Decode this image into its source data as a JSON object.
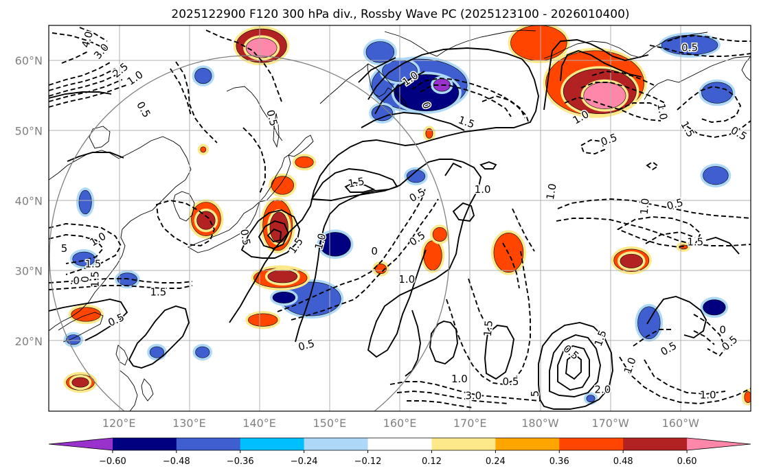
{
  "title": "2025122900 F120 300 hPa div., Rossby Wave PC (2025123100 - 2026010400)",
  "map": {
    "lon_range": [
      110,
      210
    ],
    "lat_range": [
      10,
      65
    ],
    "lat_ticks": [
      {
        "value": 20,
        "label": "20°N"
      },
      {
        "value": 30,
        "label": "30°N"
      },
      {
        "value": 40,
        "label": "40°N"
      },
      {
        "value": 50,
        "label": "50°N"
      },
      {
        "value": 60,
        "label": "60°N"
      }
    ],
    "lon_ticks": [
      {
        "value": 120,
        "label": "120°E"
      },
      {
        "value": 130,
        "label": "130°E"
      },
      {
        "value": 140,
        "label": "140°E"
      },
      {
        "value": 150,
        "label": "150°E"
      },
      {
        "value": 160,
        "label": "160°E"
      },
      {
        "value": 170,
        "label": "170°E"
      },
      {
        "value": 180,
        "label": "180°W"
      },
      {
        "value": 190,
        "label": "170°W"
      },
      {
        "value": 200,
        "label": "160°W"
      }
    ],
    "grid": true,
    "reference_circle": {
      "center_lon": 139,
      "center_lat": 36,
      "note": ""
    }
  },
  "colorbar": {
    "levels": [
      "−0.60",
      "−0.48",
      "−0.36",
      "−0.24",
      "−0.12",
      "0.12",
      "0.24",
      "0.36",
      "0.48",
      "0.60"
    ],
    "colors": [
      "#9932cc",
      "#000080",
      "#3f5fd0",
      "#00bfff",
      "#add8f8",
      "#ffffff",
      "#fde98a",
      "#ffa500",
      "#ff4500",
      "#b22222",
      "#ff88aa"
    ],
    "extend": "both"
  },
  "divergence_blobs": [
    {
      "lon": 140.3,
      "lat": 62.1,
      "rx": 3.6,
      "ry": 2.4,
      "level": 4
    },
    {
      "lon": 140.3,
      "lat": 61.8,
      "rx": 2.2,
      "ry": 1.4,
      "level": 5
    },
    {
      "lon": 179.8,
      "lat": 62.5,
      "rx": 4.0,
      "ry": 2.5,
      "level": 3
    },
    {
      "lon": 187.8,
      "lat": 56.8,
      "rx": 7.0,
      "ry": 4.6,
      "level": 3
    },
    {
      "lon": 188.5,
      "lat": 55.6,
      "rx": 5.2,
      "ry": 3.2,
      "level": 4
    },
    {
      "lon": 189.2,
      "lat": 55.0,
      "rx": 3.0,
      "ry": 1.9,
      "level": 5
    },
    {
      "lon": 162.8,
      "lat": 56.5,
      "rx": 6.8,
      "ry": 3.7,
      "level": -3
    },
    {
      "lon": 163.8,
      "lat": 55.4,
      "rx": 4.6,
      "ry": 2.6,
      "level": -4
    },
    {
      "lon": 166.0,
      "lat": 56.5,
      "rx": 1.2,
      "ry": 0.9,
      "level": -5
    },
    {
      "lon": 160.0,
      "lat": 58.5,
      "rx": 2.5,
      "ry": 1.5,
      "level": -3
    },
    {
      "lon": 201.3,
      "lat": 62.2,
      "rx": 4.0,
      "ry": 1.4,
      "level": -3
    },
    {
      "lon": 205.2,
      "lat": 55.4,
      "rx": 2.2,
      "ry": 1.5,
      "level": -3
    },
    {
      "lon": 132.0,
      "lat": 57.8,
      "rx": 1.2,
      "ry": 1.1,
      "level": -3
    },
    {
      "lon": 157.2,
      "lat": 61.2,
      "rx": 2.0,
      "ry": 1.5,
      "level": -3
    },
    {
      "lon": 157.5,
      "lat": 52.5,
      "rx": 1.5,
      "ry": 1.1,
      "level": -3
    },
    {
      "lon": 162.3,
      "lat": 43.5,
      "rx": 1.3,
      "ry": 0.9,
      "level": -3
    },
    {
      "lon": 150.8,
      "lat": 33.8,
      "rx": 2.2,
      "ry": 1.7,
      "level": -4
    },
    {
      "lon": 147.4,
      "lat": 26.0,
      "rx": 4.2,
      "ry": 2.4,
      "level": -3
    },
    {
      "lon": 143.5,
      "lat": 26.2,
      "rx": 1.6,
      "ry": 0.8,
      "level": -4
    },
    {
      "lon": 205.0,
      "lat": 43.6,
      "rx": 1.8,
      "ry": 1.3,
      "level": -3
    },
    {
      "lon": 204.8,
      "lat": 24.8,
      "rx": 1.6,
      "ry": 1.1,
      "level": -4
    },
    {
      "lon": 195.5,
      "lat": 22.6,
      "rx": 1.6,
      "ry": 2.3,
      "level": -3
    },
    {
      "lon": 115.2,
      "lat": 39.8,
      "rx": 0.9,
      "ry": 1.7,
      "level": -3
    },
    {
      "lon": 115.0,
      "lat": 31.7,
      "rx": 1.6,
      "ry": 1.0,
      "level": -3
    },
    {
      "lon": 121.2,
      "lat": 28.8,
      "rx": 1.4,
      "ry": 0.9,
      "level": -3
    },
    {
      "lon": 131.9,
      "lat": 18.4,
      "rx": 1.0,
      "ry": 0.8,
      "level": -3
    },
    {
      "lon": 125.4,
      "lat": 18.4,
      "rx": 1.0,
      "ry": 0.8,
      "level": -3
    },
    {
      "lon": 113.5,
      "lat": 20.2,
      "rx": 1.0,
      "ry": 0.7,
      "level": -3
    },
    {
      "lon": 187.2,
      "lat": 11.8,
      "rx": 0.6,
      "ry": 0.5,
      "level": -3
    },
    {
      "lon": 132.4,
      "lat": 37.4,
      "rx": 2.1,
      "ry": 2.4,
      "level": 3
    },
    {
      "lon": 132.4,
      "lat": 37.2,
      "rx": 1.3,
      "ry": 1.3,
      "level": 4
    },
    {
      "lon": 142.6,
      "lat": 36.5,
      "rx": 2.1,
      "ry": 3.6,
      "level": 3
    },
    {
      "lon": 142.8,
      "lat": 36.2,
      "rx": 1.3,
      "ry": 2.2,
      "level": 4
    },
    {
      "lon": 143.3,
      "lat": 42.2,
      "rx": 1.6,
      "ry": 1.3,
      "level": 3
    },
    {
      "lon": 143.0,
      "lat": 29.0,
      "rx": 3.8,
      "ry": 1.4,
      "level": 3
    },
    {
      "lon": 143.3,
      "lat": 29.2,
      "rx": 2.1,
      "ry": 0.9,
      "level": 4
    },
    {
      "lon": 140.5,
      "lat": 23.0,
      "rx": 2.1,
      "ry": 0.9,
      "level": 3
    },
    {
      "lon": 146.4,
      "lat": 45.5,
      "rx": 1.3,
      "ry": 0.8,
      "level": 3
    },
    {
      "lon": 157.3,
      "lat": 30.3,
      "rx": 0.8,
      "ry": 0.7,
      "level": 3
    },
    {
      "lon": 164.7,
      "lat": 32.2,
      "rx": 1.3,
      "ry": 2.1,
      "level": 3
    },
    {
      "lon": 165.7,
      "lat": 35.2,
      "rx": 1.0,
      "ry": 1.0,
      "level": 3
    },
    {
      "lon": 175.5,
      "lat": 32.6,
      "rx": 2.1,
      "ry": 2.8,
      "level": 3
    },
    {
      "lon": 193.0,
      "lat": 31.5,
      "rx": 2.5,
      "ry": 1.6,
      "level": 3
    },
    {
      "lon": 193.0,
      "lat": 31.4,
      "rx": 1.6,
      "ry": 1.0,
      "level": 4
    },
    {
      "lon": 115.3,
      "lat": 23.8,
      "rx": 2.1,
      "ry": 1.0,
      "level": 3
    },
    {
      "lon": 114.5,
      "lat": 14.1,
      "rx": 2.0,
      "ry": 1.1,
      "level": 3
    },
    {
      "lon": 114.5,
      "lat": 14.1,
      "rx": 1.2,
      "ry": 0.7,
      "level": 4
    },
    {
      "lon": 164.2,
      "lat": 49.6,
      "rx": 0.5,
      "ry": 0.7,
      "level": 3
    },
    {
      "lon": 132.0,
      "lat": 47.3,
      "rx": 0.4,
      "ry": 0.4,
      "level": 3
    },
    {
      "lon": 200.4,
      "lat": 33.4,
      "rx": 0.6,
      "ry": 0.3,
      "level": 3
    },
    {
      "lon": 209.6,
      "lat": 12.0,
      "rx": 0.5,
      "ry": 0.8,
      "level": 3
    }
  ],
  "contour_labels": [
    {
      "lon": 115.5,
      "lat": 63.0,
      "text": "4.0",
      "rot": -75
    },
    {
      "lon": 117.5,
      "lat": 61.3,
      "text": "3.0",
      "rot": -50
    },
    {
      "lon": 120.2,
      "lat": 58.6,
      "text": "2.5",
      "rot": -40
    },
    {
      "lon": 122.3,
      "lat": 57.5,
      "text": "1.0",
      "rot": -35
    },
    {
      "lon": 123.5,
      "lat": 53.0,
      "text": "0.5",
      "rot": 60
    },
    {
      "lon": 141.8,
      "lat": 51.8,
      "text": "0.5",
      "rot": 75
    },
    {
      "lon": 161.5,
      "lat": 57.4,
      "text": "1.0",
      "rot": -35
    },
    {
      "lon": 163.8,
      "lat": 53.6,
      "text": "0",
      "rot": 70
    },
    {
      "lon": 169.5,
      "lat": 51.2,
      "text": "1.5",
      "rot": 20
    },
    {
      "lon": 153.8,
      "lat": 42.6,
      "text": "1.5",
      "rot": -10
    },
    {
      "lon": 171.8,
      "lat": 41.6,
      "text": "1.0",
      "rot": 0
    },
    {
      "lon": 162.5,
      "lat": 40.8,
      "text": "0.5",
      "rot": -30
    },
    {
      "lon": 162.5,
      "lat": 34.6,
      "text": "0.5",
      "rot": -35
    },
    {
      "lon": 138.0,
      "lat": 34.8,
      "text": "0.5",
      "rot": 80
    },
    {
      "lon": 145.2,
      "lat": 33.6,
      "text": "1.5",
      "rot": -55
    },
    {
      "lon": 148.7,
      "lat": 34.2,
      "text": "1.0",
      "rot": -75
    },
    {
      "lon": 146.7,
      "lat": 19.4,
      "text": "0.5",
      "rot": -15
    },
    {
      "lon": 161.0,
      "lat": 28.8,
      "text": "1.0",
      "rot": 0
    },
    {
      "lon": 156.4,
      "lat": 32.8,
      "text": "0",
      "rot": 0
    },
    {
      "lon": 117.0,
      "lat": 34.5,
      "text": "1.0",
      "rot": -30
    },
    {
      "lon": 112.2,
      "lat": 33.2,
      "text": "5",
      "rot": 0
    },
    {
      "lon": 116.3,
      "lat": 31.0,
      "text": "1.5",
      "rot": 0
    },
    {
      "lon": 116.6,
      "lat": 28.8,
      "text": "1.5",
      "rot": -90
    },
    {
      "lon": 115.2,
      "lat": 28.8,
      "text": "0",
      "rot": -90
    },
    {
      "lon": 125.6,
      "lat": 27.0,
      "text": "1.5",
      "rot": 0
    },
    {
      "lon": 119.6,
      "lat": 23.0,
      "text": "0.5",
      "rot": -25
    },
    {
      "lon": 172.6,
      "lat": 21.8,
      "text": "1.5",
      "rot": -85
    },
    {
      "lon": 181.6,
      "lat": 41.3,
      "text": "1.0",
      "rot": -80
    },
    {
      "lon": 184.4,
      "lat": 18.4,
      "text": "0.5",
      "rot": 40
    },
    {
      "lon": 175.8,
      "lat": 14.2,
      "text": "0.5",
      "rot": 0
    },
    {
      "lon": 168.5,
      "lat": 14.6,
      "text": "1.0",
      "rot": 0
    },
    {
      "lon": 170.5,
      "lat": 12.2,
      "text": "3.0",
      "rot": 0
    },
    {
      "lon": 179.3,
      "lat": 12.5,
      "text": "5",
      "rot": -90
    },
    {
      "lon": 188.6,
      "lat": 20.4,
      "text": "1.5",
      "rot": -70
    },
    {
      "lon": 188.9,
      "lat": 13.1,
      "text": "2.0",
      "rot": 0
    },
    {
      "lon": 192.8,
      "lat": 16.5,
      "text": "1.0",
      "rot": -70
    },
    {
      "lon": 198.3,
      "lat": 18.9,
      "text": "0.5",
      "rot": -30
    },
    {
      "lon": 203.9,
      "lat": 12.3,
      "text": "1.0",
      "rot": 0
    },
    {
      "lon": 199.2,
      "lat": 39.5,
      "text": "0.5",
      "rot": -15
    },
    {
      "lon": 194.9,
      "lat": 39.2,
      "text": "1.0",
      "rot": -85
    },
    {
      "lon": 202.1,
      "lat": 34.1,
      "text": "1.5",
      "rot": 0
    },
    {
      "lon": 208.3,
      "lat": 49.6,
      "text": "0.5",
      "rot": 30
    },
    {
      "lon": 201.3,
      "lat": 61.8,
      "text": "0.5",
      "rot": 0
    },
    {
      "lon": 189.8,
      "lat": 48.7,
      "text": "0.5",
      "rot": -20
    },
    {
      "lon": 197.4,
      "lat": 52.7,
      "text": "1.0",
      "rot": 80
    },
    {
      "lon": 201.0,
      "lat": 50.2,
      "text": "1.5",
      "rot": 60
    },
    {
      "lon": 185.8,
      "lat": 51.9,
      "text": "1.0",
      "rot": -30
    },
    {
      "lon": 206.0,
      "lat": 21.6,
      "text": "0",
      "rot": 0
    },
    {
      "lon": 207.0,
      "lat": 19.7,
      "text": "0.5",
      "rot": -40
    },
    {
      "lon": 113.7,
      "lat": 28.6,
      "text": ".0",
      "rot": 0
    }
  ]
}
